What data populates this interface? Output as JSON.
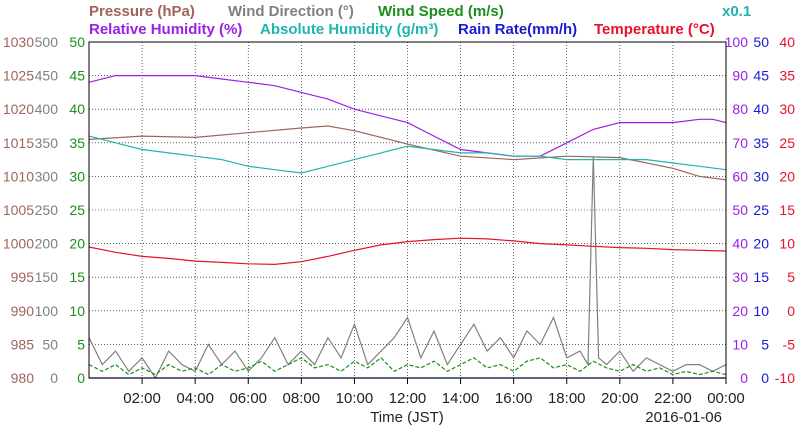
{
  "chart_data": {
    "type": "line",
    "date": "2016-01-06",
    "xlabel": "Time (JST)",
    "x_range": [
      "00:00",
      "24:00"
    ],
    "x_ticks": [
      "02:00",
      "04:00",
      "06:00",
      "08:00",
      "10:00",
      "12:00",
      "14:00",
      "16:00",
      "18:00",
      "20:00",
      "22:00",
      "00:00"
    ],
    "grid": true,
    "legend": [
      {
        "label": "Pressure (hPa)",
        "color": "#a0645a",
        "row": 1
      },
      {
        "label": "Wind Direction (°)",
        "color": "#808080",
        "row": 1
      },
      {
        "label": "Wind Speed (m/s)",
        "color": "#1a8f1a",
        "row": 1
      },
      {
        "label": "Relative Humidity (%)",
        "color": "#9b1fe8",
        "row": 2
      },
      {
        "label": "Absolute Humidity (g/m³)",
        "color": "#1fb5b0",
        "row": 2
      },
      {
        "label": "Rain Rate(mm/h)",
        "color": "#1a1ad4",
        "row": 2
      },
      {
        "label": "Temperature (°C)",
        "color": "#e8102a",
        "row": 2
      },
      {
        "label": "x0.1",
        "color": "#1fb5b0",
        "row": 1
      }
    ],
    "axes": {
      "pressure": {
        "color": "#a0645a",
        "ylim": [
          980,
          1030
        ],
        "ticks": [
          "1030",
          "1025",
          "1020",
          "1015",
          "1010",
          "1005",
          "1000",
          "995",
          "990",
          "985",
          "980"
        ]
      },
      "wind_direction": {
        "color": "#808080",
        "ylim": [
          0,
          500
        ],
        "ticks": [
          "500",
          "450",
          "400",
          "350",
          "300",
          "250",
          "200",
          "150",
          "100",
          "50",
          "0"
        ]
      },
      "wind_speed": {
        "color": "#1a8f1a",
        "ylim": [
          0,
          50
        ],
        "ticks": [
          "50",
          "45",
          "40",
          "35",
          "30",
          "25",
          "20",
          "15",
          "10",
          "5",
          "0"
        ]
      },
      "relative_humidity": {
        "color": "#9b1fe8",
        "ylim": [
          0,
          100
        ],
        "ticks": [
          "100",
          "90",
          "80",
          "70",
          "60",
          "50",
          "40",
          "30",
          "20",
          "10",
          "0"
        ]
      },
      "rain_rate": {
        "color": "#1a1ad4",
        "ylim": [
          0,
          50
        ],
        "ticks": [
          "50",
          "45",
          "40",
          "35",
          "30",
          "25",
          "20",
          "15",
          "10",
          "5",
          "0"
        ]
      },
      "temperature": {
        "color": "#e8102a",
        "ylim": [
          -10,
          40
        ],
        "ticks": [
          "40",
          "35",
          "30",
          "25",
          "20",
          "15",
          "10",
          "5",
          "0",
          "-5",
          "-10"
        ]
      }
    },
    "series": [
      {
        "name": "Pressure (hPa)",
        "axis": "pressure",
        "color": "#a0645a",
        "x": [
          0,
          2,
          4,
          6,
          8,
          9,
          10,
          12,
          14,
          16,
          18,
          20,
          22,
          23,
          24
        ],
        "y": [
          1015.5,
          1016.0,
          1015.8,
          1016.5,
          1017.2,
          1017.5,
          1016.8,
          1014.8,
          1013.0,
          1012.5,
          1013.0,
          1012.8,
          1011.2,
          1010.0,
          1009.5
        ]
      },
      {
        "name": "Wind Direction (°)",
        "axis": "wind_direction",
        "color": "#808080",
        "x": [
          0,
          0.5,
          1,
          1.5,
          2,
          2.5,
          3,
          3.5,
          4,
          4.5,
          5,
          5.5,
          6,
          6.5,
          7,
          7.5,
          8,
          8.5,
          9,
          9.5,
          10,
          10.5,
          11,
          11.5,
          12,
          12.5,
          13,
          13.5,
          14,
          14.5,
          15,
          15.5,
          16,
          16.5,
          17,
          17.5,
          18,
          18.5,
          18.8,
          19,
          19.2,
          19.5,
          20,
          20.5,
          21,
          21.5,
          22,
          22.5,
          23,
          23.5,
          24
        ],
        "y": [
          60,
          20,
          40,
          10,
          30,
          0,
          40,
          20,
          10,
          50,
          20,
          40,
          10,
          30,
          60,
          20,
          40,
          20,
          60,
          30,
          80,
          20,
          40,
          60,
          90,
          30,
          70,
          20,
          50,
          80,
          40,
          60,
          30,
          70,
          50,
          90,
          30,
          40,
          20,
          330,
          30,
          20,
          40,
          10,
          30,
          20,
          10,
          20,
          20,
          10,
          20
        ]
      },
      {
        "name": "Wind Speed (m/s)",
        "axis": "wind_speed",
        "color": "#1a8f1a",
        "x": [
          0,
          0.5,
          1,
          1.5,
          2,
          2.5,
          3,
          3.5,
          4,
          4.5,
          5,
          5.5,
          6,
          6.5,
          7,
          7.5,
          8,
          8.5,
          9,
          9.5,
          10,
          10.5,
          11,
          11.5,
          12,
          12.5,
          13,
          13.5,
          14,
          14.5,
          15,
          15.5,
          16,
          16.5,
          17,
          17.5,
          18,
          18.5,
          19,
          19.5,
          20,
          20.5,
          21,
          21.5,
          22,
          22.5,
          23,
          23.5,
          24
        ],
        "y": [
          2,
          1,
          2,
          0.5,
          1.5,
          0.5,
          2,
          1,
          1.5,
          0.5,
          2,
          1,
          1.5,
          2.5,
          1,
          2,
          3,
          1.5,
          2,
          1,
          2.5,
          1.5,
          3,
          1,
          2,
          1.5,
          2.5,
          1,
          2,
          3,
          1.5,
          2,
          1,
          2.5,
          3,
          1.5,
          2,
          1,
          2.5,
          1.5,
          1,
          2,
          1,
          1.5,
          0.5,
          1,
          0.5,
          1,
          0.5
        ]
      },
      {
        "name": "Relative Humidity (%)",
        "axis": "relative_humidity",
        "color": "#9b1fe8",
        "x": [
          0,
          1,
          2,
          3,
          4,
          5,
          6,
          7,
          8,
          9,
          10,
          11,
          12,
          13,
          14,
          15,
          16,
          17,
          18,
          19,
          20,
          21,
          22,
          23,
          23.5,
          24
        ],
        "y": [
          88,
          90,
          90,
          90,
          90,
          89,
          88,
          87,
          85,
          83,
          80,
          78,
          76,
          72,
          68,
          67,
          66,
          66,
          70,
          74,
          76,
          76,
          76,
          77,
          77,
          76
        ]
      },
      {
        "name": "Absolute Humidity (g/m³) x0.1",
        "axis": "relative_humidity",
        "color": "#1fb5b0",
        "x": [
          0,
          1,
          2,
          3,
          4,
          5,
          6,
          7,
          8,
          9,
          10,
          11,
          12,
          13,
          14,
          15,
          16,
          17,
          18,
          19,
          20,
          21,
          22,
          23,
          24
        ],
        "y": [
          72,
          70,
          68,
          67,
          66,
          65,
          63,
          62,
          61,
          63,
          65,
          67,
          69,
          68,
          67,
          67,
          66,
          66,
          65,
          65,
          65,
          65,
          64,
          63,
          62
        ]
      },
      {
        "name": "Rain Rate(mm/h)",
        "axis": "rain_rate",
        "color": "#1a1ad4",
        "x": [
          0,
          24
        ],
        "y": [
          0,
          0
        ]
      },
      {
        "name": "Temperature (°C)",
        "axis": "temperature",
        "color": "#e8102a",
        "x": [
          0,
          1,
          2,
          3,
          4,
          5,
          6,
          7,
          8,
          9,
          10,
          11,
          12,
          13,
          14,
          15,
          16,
          17,
          18,
          19,
          20,
          21,
          22,
          23,
          24
        ],
        "y": [
          9.5,
          8.7,
          8.1,
          7.8,
          7.4,
          7.2,
          7.0,
          6.9,
          7.3,
          8.1,
          9.0,
          9.8,
          10.3,
          10.6,
          10.8,
          10.7,
          10.4,
          10.0,
          9.8,
          9.6,
          9.4,
          9.3,
          9.1,
          9.0,
          8.9
        ]
      }
    ]
  }
}
